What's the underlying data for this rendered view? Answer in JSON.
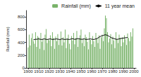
{
  "chart_data": {
    "type": "bar",
    "y_label": "Rainfall (mm)",
    "x": [
      1900,
      1901,
      1902,
      1903,
      1904,
      1905,
      1906,
      1907,
      1908,
      1909,
      1910,
      1911,
      1912,
      1913,
      1914,
      1915,
      1916,
      1917,
      1918,
      1919,
      1920,
      1921,
      1922,
      1923,
      1924,
      1925,
      1926,
      1927,
      1928,
      1929,
      1930,
      1931,
      1932,
      1933,
      1934,
      1935,
      1936,
      1937,
      1938,
      1939,
      1940,
      1941,
      1942,
      1943,
      1944,
      1945,
      1946,
      1947,
      1948,
      1949,
      1950,
      1951,
      1952,
      1953,
      1954,
      1955,
      1956,
      1957,
      1958,
      1959,
      1960,
      1961,
      1962,
      1963,
      1964,
      1965,
      1966,
      1967,
      1968,
      1969,
      1970,
      1971,
      1972,
      1973,
      1974,
      1975,
      1976,
      1977,
      1978,
      1979,
      1980,
      1981,
      1982,
      1983,
      1984,
      1985,
      1986,
      1987,
      1988,
      1989,
      1990,
      1991,
      1992,
      1993,
      1994,
      1995,
      1996,
      1997,
      1998,
      1999
    ],
    "series": [
      {
        "name": "Rainfall (mm)",
        "type": "bar",
        "color": "#79b36a",
        "values": [
          320,
          520,
          350,
          470,
          540,
          420,
          380,
          560,
          330,
          500,
          480,
          300,
          550,
          410,
          460,
          280,
          520,
          610,
          390,
          450,
          430,
          510,
          340,
          560,
          470,
          300,
          490,
          420,
          530,
          360,
          440,
          570,
          350,
          480,
          400,
          600,
          310,
          460,
          520,
          380,
          290,
          500,
          430,
          550,
          370,
          470,
          580,
          330,
          450,
          510,
          600,
          390,
          460,
          340,
          520,
          480,
          410,
          290,
          560,
          440,
          370,
          500,
          420,
          330,
          550,
          460,
          390,
          510,
          300,
          480,
          520,
          420,
          620,
          820,
          780,
          560,
          400,
          460,
          530,
          370,
          490,
          430,
          310,
          560,
          450,
          390,
          520,
          470,
          340,
          480,
          400,
          510,
          450,
          360,
          540,
          470,
          420,
          560,
          490,
          620
        ]
      },
      {
        "name": "11 year mean",
        "type": "line",
        "color": "#000000",
        "line_style": "solid",
        "values": [
          null,
          null,
          null,
          null,
          null,
          440,
          445,
          450,
          448,
          452,
          455,
          450,
          448,
          445,
          450,
          455,
          452,
          448,
          445,
          450,
          452,
          455,
          450,
          445,
          448,
          450,
          452,
          455,
          450,
          448,
          445,
          450,
          455,
          452,
          448,
          445,
          450,
          452,
          448,
          445,
          450,
          455,
          458,
          452,
          448,
          450,
          455,
          460,
          458,
          452,
          450,
          448,
          452,
          455,
          450,
          445,
          448,
          450,
          452,
          455,
          450,
          448,
          445,
          450,
          455,
          460,
          470,
          480,
          490,
          500,
          505,
          510,
          515,
          520,
          515,
          510,
          500,
          490,
          480,
          470,
          465,
          460,
          455,
          450,
          448,
          450,
          455,
          460,
          462,
          465,
          468,
          470,
          472,
          475,
          478,
          null,
          null,
          null,
          null,
          null
        ]
      }
    ],
    "xlim": [
      1898,
      2002
    ],
    "xticks": [
      1900,
      1910,
      1920,
      1930,
      1940,
      1950,
      1960,
      1970,
      1980,
      1990,
      2000
    ],
    "ylim": [
      0,
      900
    ],
    "yticks": [
      0,
      200,
      400,
      600,
      800
    ],
    "grid": false,
    "legend": "top-right"
  }
}
